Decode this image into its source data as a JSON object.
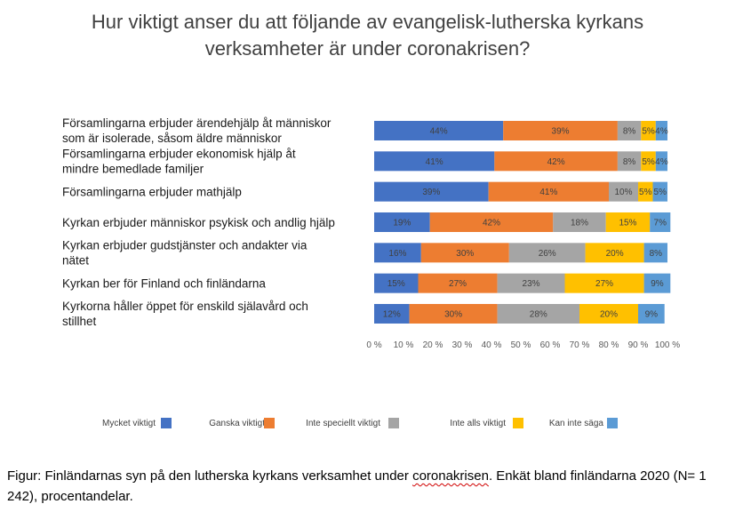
{
  "chart_data": {
    "type": "bar",
    "orientation": "horizontal",
    "stacked": true,
    "title": "Hur viktigt anser du att följande av evangelisk-lutherska kyrkans verksamheter är under coronakrisen?",
    "categories": [
      [
        "Församlingarna erbjuder ärendehjälp åt människor",
        "som är isolerade, såsom äldre människor"
      ],
      [
        "Församlingarna erbjuder ekonomisk hjälp åt",
        "mindre bemedlade familjer"
      ],
      [
        "Församlingarna erbjuder mathjälp"
      ],
      [
        "Kyrkan erbjuder människor psykisk och andlig hjälp"
      ],
      [
        "Kyrkan erbjuder gudstjänster och andakter via",
        "nätet"
      ],
      [
        "Kyrkan ber för Finland och finländarna"
      ],
      [
        "Kyrkorna håller öppet för enskild själavård och",
        "stillhet"
      ]
    ],
    "series": [
      {
        "name": "Mycket viktigt",
        "color": "#4472c4",
        "values": [
          44,
          41,
          39,
          19,
          16,
          15,
          12
        ]
      },
      {
        "name": "Ganska viktigt",
        "color": "#ed7d31",
        "values": [
          39,
          42,
          41,
          42,
          30,
          27,
          30
        ]
      },
      {
        "name": "Inte speciellt viktigt",
        "color": "#a5a5a5",
        "values": [
          8,
          8,
          10,
          18,
          26,
          23,
          28
        ]
      },
      {
        "name": "Inte alls viktigt",
        "color": "#ffc000",
        "values": [
          5,
          5,
          5,
          15,
          20,
          27,
          20
        ]
      },
      {
        "name": "Kan inte säga",
        "color": "#5b9bd5",
        "values": [
          4,
          4,
          5,
          7,
          8,
          9,
          9
        ]
      }
    ],
    "xlim": [
      0,
      100
    ],
    "xticks": [
      "0 %",
      "10 %",
      "20 %",
      "30 %",
      "40 %",
      "50 %",
      "60 %",
      "70 %",
      "80 %",
      "90 %",
      "100 %"
    ],
    "value_suffix": "%",
    "legend_position": "bottom",
    "grid": false
  },
  "caption": {
    "before": "Figur: Finländarnas syn på den lutherska kyrkans verksamhet under ",
    "underlined": "coronakrisen",
    "after": ". Enkät bland finländarna 2020 (N= 1 242), procentandelar."
  }
}
